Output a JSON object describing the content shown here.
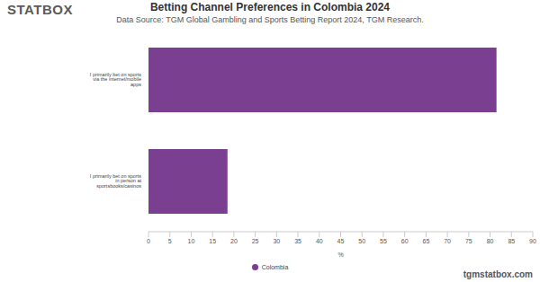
{
  "chart_data": {
    "type": "bar",
    "orientation": "horizontal",
    "logo": "STATBOX",
    "title": "Betting Channel Preferences in Colombia 2024",
    "subtitle": "Data Source: TGM Global Gambling and Sports Betting Report 2024, TGM Research.",
    "categories": [
      "I primarily bet on sports via the internet/mobile apps",
      "I primarily bet on sports in person at sportsbooks/casinos"
    ],
    "series": [
      {
        "name": "Colombia",
        "color": "#7b3f91",
        "values": [
          81.5,
          18.5
        ]
      }
    ],
    "x_label": "%",
    "xlim": [
      0,
      90
    ],
    "xticks": [
      0,
      5,
      10,
      15,
      20,
      25,
      30,
      35,
      40,
      45,
      50,
      55,
      60,
      65,
      70,
      75,
      80,
      85,
      90
    ],
    "grid": false,
    "legend": "bottom",
    "watermark": "tgmstatbox.com"
  }
}
